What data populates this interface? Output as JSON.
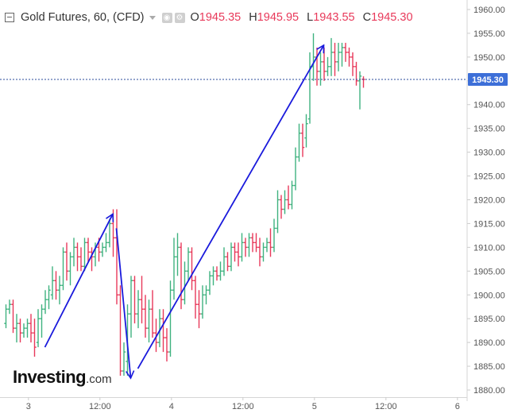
{
  "header": {
    "title": "Gold Futures, 60, (CFD)",
    "open_label": "O",
    "open_value": "1945.35",
    "high_label": "H",
    "high_value": "1945.95",
    "low_label": "L",
    "low_value": "1943.55",
    "close_label": "C",
    "close_value": "1945.30"
  },
  "branding": {
    "name": "Investing",
    "suffix": ".com"
  },
  "price_tag": "1945.30",
  "colors": {
    "up": "#3fb27f",
    "down": "#e8395a",
    "arrow": "#1a1adc",
    "axis_text": "#555555",
    "price_tag_bg": "#3d6fd8",
    "grid_line": "#e8e8e8",
    "price_line": "#2a4b9b"
  },
  "icons": [
    "collapse-icon",
    "chevron-down-icon",
    "eye-icon",
    "gear-icon"
  ],
  "chart_data": {
    "type": "ohlc",
    "x_tick_labels": [
      "3",
      "12:00",
      "4",
      "12:00",
      "5",
      "12:00",
      "6"
    ],
    "y_ticks": [
      1880,
      1885,
      1890,
      1895,
      1900,
      1905,
      1910,
      1915,
      1920,
      1925,
      1930,
      1935,
      1940,
      1945,
      1950,
      1955,
      1960
    ],
    "y_tick_labels": [
      "1880.00",
      "1885.00",
      "1890.00",
      "1895.00",
      "1900.00",
      "1905.00",
      "1910.00",
      "1915.00",
      "1920.00",
      "1925.00",
      "1930.00",
      "1935.00",
      "1940.00",
      "1945.00",
      "1950.00",
      "1955.00",
      "1960.00"
    ],
    "ylim": [
      1878.5,
      1962
    ],
    "last_price": 1945.3,
    "x_tick_bar_index": [
      6.4,
      26.4,
      46.4,
      66.4,
      86.4,
      106.4,
      126.4
    ],
    "bars": [
      {
        "o": 1894,
        "h": 1898,
        "l": 1893,
        "c": 1897
      },
      {
        "o": 1897,
        "h": 1899,
        "l": 1896,
        "c": 1898
      },
      {
        "o": 1898,
        "h": 1899,
        "l": 1892,
        "c": 1893
      },
      {
        "o": 1893,
        "h": 1896,
        "l": 1890,
        "c": 1894
      },
      {
        "o": 1894,
        "h": 1895,
        "l": 1890,
        "c": 1892
      },
      {
        "o": 1892,
        "h": 1894,
        "l": 1891,
        "c": 1893
      },
      {
        "o": 1893,
        "h": 1895,
        "l": 1891,
        "c": 1894
      },
      {
        "o": 1894,
        "h": 1896,
        "l": 1890,
        "c": 1892
      },
      {
        "o": 1892,
        "h": 1895,
        "l": 1887,
        "c": 1889
      },
      {
        "o": 1890,
        "h": 1897,
        "l": 1889,
        "c": 1895
      },
      {
        "o": 1895,
        "h": 1898,
        "l": 1891,
        "c": 1897
      },
      {
        "o": 1897,
        "h": 1901,
        "l": 1896,
        "c": 1899
      },
      {
        "o": 1899,
        "h": 1902,
        "l": 1897,
        "c": 1901
      },
      {
        "o": 1900,
        "h": 1906,
        "l": 1899,
        "c": 1903
      },
      {
        "o": 1903,
        "h": 1905,
        "l": 1899,
        "c": 1901
      },
      {
        "o": 1901,
        "h": 1904,
        "l": 1898,
        "c": 1902
      },
      {
        "o": 1902,
        "h": 1910,
        "l": 1901,
        "c": 1909
      },
      {
        "o": 1909,
        "h": 1911,
        "l": 1903,
        "c": 1905
      },
      {
        "o": 1905,
        "h": 1909,
        "l": 1902,
        "c": 1908
      },
      {
        "o": 1908,
        "h": 1912,
        "l": 1906,
        "c": 1910
      },
      {
        "o": 1910,
        "h": 1911,
        "l": 1905,
        "c": 1908
      },
      {
        "o": 1908,
        "h": 1910,
        "l": 1905,
        "c": 1906
      },
      {
        "o": 1906,
        "h": 1912,
        "l": 1905,
        "c": 1911
      },
      {
        "o": 1911,
        "h": 1912,
        "l": 1907,
        "c": 1909
      },
      {
        "o": 1909,
        "h": 1910,
        "l": 1905,
        "c": 1908
      },
      {
        "o": 1908,
        "h": 1911,
        "l": 1906,
        "c": 1910
      },
      {
        "o": 1910,
        "h": 1912,
        "l": 1907,
        "c": 1909
      },
      {
        "o": 1909,
        "h": 1911,
        "l": 1908,
        "c": 1910
      },
      {
        "o": 1910,
        "h": 1913,
        "l": 1909,
        "c": 1911
      },
      {
        "o": 1911,
        "h": 1916,
        "l": 1910,
        "c": 1915
      },
      {
        "o": 1915,
        "h": 1918,
        "l": 1908,
        "c": 1912
      },
      {
        "o": 1912,
        "h": 1918,
        "l": 1898,
        "c": 1900
      },
      {
        "o": 1900,
        "h": 1902,
        "l": 1883,
        "c": 1884
      },
      {
        "o": 1884,
        "h": 1890,
        "l": 1883,
        "c": 1888
      },
      {
        "o": 1886,
        "h": 1898,
        "l": 1883,
        "c": 1896
      },
      {
        "o": 1896,
        "h": 1904,
        "l": 1891,
        "c": 1903
      },
      {
        "o": 1903,
        "h": 1904,
        "l": 1894,
        "c": 1896
      },
      {
        "o": 1896,
        "h": 1901,
        "l": 1893,
        "c": 1899
      },
      {
        "o": 1899,
        "h": 1904,
        "l": 1894,
        "c": 1897
      },
      {
        "o": 1897,
        "h": 1900,
        "l": 1891,
        "c": 1893
      },
      {
        "o": 1893,
        "h": 1899,
        "l": 1890,
        "c": 1897
      },
      {
        "o": 1897,
        "h": 1901,
        "l": 1891,
        "c": 1892
      },
      {
        "o": 1892,
        "h": 1895,
        "l": 1888,
        "c": 1890
      },
      {
        "o": 1890,
        "h": 1897,
        "l": 1889,
        "c": 1895
      },
      {
        "o": 1895,
        "h": 1897,
        "l": 1888,
        "c": 1891
      },
      {
        "o": 1891,
        "h": 1893,
        "l": 1886,
        "c": 1888
      },
      {
        "o": 1888,
        "h": 1903,
        "l": 1887,
        "c": 1901
      },
      {
        "o": 1901,
        "h": 1912,
        "l": 1899,
        "c": 1908
      },
      {
        "o": 1908,
        "h": 1913,
        "l": 1904,
        "c": 1910
      },
      {
        "o": 1910,
        "h": 1911,
        "l": 1897,
        "c": 1899
      },
      {
        "o": 1899,
        "h": 1907,
        "l": 1898,
        "c": 1905
      },
      {
        "o": 1905,
        "h": 1910,
        "l": 1903,
        "c": 1909
      },
      {
        "o": 1909,
        "h": 1910,
        "l": 1901,
        "c": 1903
      },
      {
        "o": 1903,
        "h": 1904,
        "l": 1895,
        "c": 1898
      },
      {
        "o": 1898,
        "h": 1901,
        "l": 1893,
        "c": 1896
      },
      {
        "o": 1896,
        "h": 1902,
        "l": 1895,
        "c": 1900
      },
      {
        "o": 1900,
        "h": 1902,
        "l": 1898,
        "c": 1901
      },
      {
        "o": 1901,
        "h": 1905,
        "l": 1900,
        "c": 1904
      },
      {
        "o": 1904,
        "h": 1906,
        "l": 1902,
        "c": 1905
      },
      {
        "o": 1905,
        "h": 1906,
        "l": 1903,
        "c": 1904
      },
      {
        "o": 1904,
        "h": 1907,
        "l": 1903,
        "c": 1905
      },
      {
        "o": 1905,
        "h": 1910,
        "l": 1904,
        "c": 1908
      },
      {
        "o": 1908,
        "h": 1909,
        "l": 1905,
        "c": 1906
      },
      {
        "o": 1906,
        "h": 1911,
        "l": 1905,
        "c": 1910
      },
      {
        "o": 1910,
        "h": 1911,
        "l": 1907,
        "c": 1909
      },
      {
        "o": 1909,
        "h": 1911,
        "l": 1906,
        "c": 1908
      },
      {
        "o": 1908,
        "h": 1913,
        "l": 1907,
        "c": 1911
      },
      {
        "o": 1911,
        "h": 1912,
        "l": 1908,
        "c": 1910
      },
      {
        "o": 1910,
        "h": 1913,
        "l": 1908,
        "c": 1912
      },
      {
        "o": 1912,
        "h": 1913,
        "l": 1909,
        "c": 1911
      },
      {
        "o": 1911,
        "h": 1913,
        "l": 1909,
        "c": 1910
      },
      {
        "o": 1910,
        "h": 1912,
        "l": 1906,
        "c": 1908
      },
      {
        "o": 1908,
        "h": 1911,
        "l": 1907,
        "c": 1910
      },
      {
        "o": 1910,
        "h": 1912,
        "l": 1909,
        "c": 1911
      },
      {
        "o": 1911,
        "h": 1914,
        "l": 1908,
        "c": 1910
      },
      {
        "o": 1910,
        "h": 1916,
        "l": 1909,
        "c": 1914
      },
      {
        "o": 1914,
        "h": 1922,
        "l": 1913,
        "c": 1920
      },
      {
        "o": 1920,
        "h": 1921,
        "l": 1916,
        "c": 1918
      },
      {
        "o": 1918,
        "h": 1922,
        "l": 1917,
        "c": 1920
      },
      {
        "o": 1920,
        "h": 1923,
        "l": 1918,
        "c": 1919
      },
      {
        "o": 1919,
        "h": 1924,
        "l": 1918,
        "c": 1923
      },
      {
        "o": 1923,
        "h": 1931,
        "l": 1922,
        "c": 1929
      },
      {
        "o": 1929,
        "h": 1936,
        "l": 1928,
        "c": 1934
      },
      {
        "o": 1934,
        "h": 1936,
        "l": 1929,
        "c": 1931
      },
      {
        "o": 1933,
        "h": 1938,
        "l": 1931,
        "c": 1936
      },
      {
        "o": 1937,
        "h": 1951,
        "l": 1936,
        "c": 1948
      },
      {
        "o": 1948,
        "h": 1955,
        "l": 1945,
        "c": 1950
      },
      {
        "o": 1950,
        "h": 1952,
        "l": 1944,
        "c": 1947
      },
      {
        "o": 1947,
        "h": 1951,
        "l": 1944,
        "c": 1949
      },
      {
        "o": 1949,
        "h": 1952,
        "l": 1945,
        "c": 1947
      },
      {
        "o": 1947,
        "h": 1950,
        "l": 1946,
        "c": 1948
      },
      {
        "o": 1948,
        "h": 1954,
        "l": 1946,
        "c": 1951
      },
      {
        "o": 1951,
        "h": 1953,
        "l": 1946,
        "c": 1949
      },
      {
        "o": 1949,
        "h": 1953,
        "l": 1947,
        "c": 1951
      },
      {
        "o": 1951,
        "h": 1953,
        "l": 1948,
        "c": 1952
      },
      {
        "o": 1952,
        "h": 1953,
        "l": 1949,
        "c": 1951
      },
      {
        "o": 1951,
        "h": 1952,
        "l": 1948,
        "c": 1950
      },
      {
        "o": 1950,
        "h": 1951,
        "l": 1946,
        "c": 1948
      },
      {
        "o": 1948,
        "h": 1949,
        "l": 1944,
        "c": 1945
      },
      {
        "o": 1945,
        "h": 1947,
        "l": 1939,
        "c": 1946
      },
      {
        "o": 1945.35,
        "h": 1945.95,
        "l": 1943.55,
        "c": 1945.3
      }
    ],
    "annotations": [
      {
        "type": "arrow",
        "from": {
          "bar": 11,
          "price": 1889
        },
        "to": {
          "bar": 30,
          "price": 1917
        }
      },
      {
        "type": "arrow",
        "from": {
          "bar": 31,
          "price": 1914
        },
        "to": {
          "bar": 35,
          "price": 1882.5
        }
      },
      {
        "type": "arrow",
        "from": {
          "bar": 37,
          "price": 1884.5
        },
        "to": {
          "bar": 89,
          "price": 1952.5
        }
      }
    ]
  }
}
